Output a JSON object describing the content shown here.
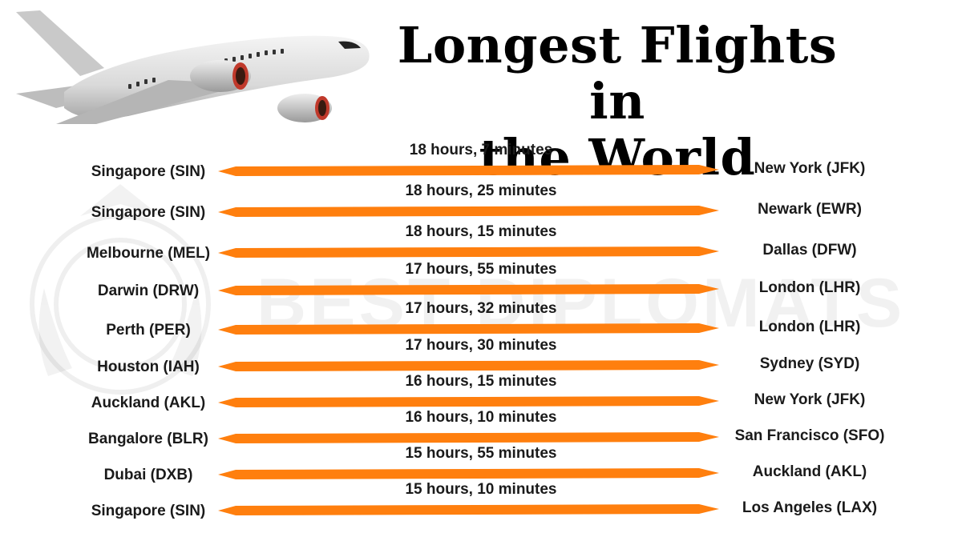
{
  "title_line1": "Longest Flights in",
  "title_line2": "the World",
  "watermark": "BEST DIPLOMATS",
  "arrow_color": "#ff7f0e",
  "flights": [
    {
      "origin": "Singapore (SIN)",
      "destination": "New York (JFK)",
      "duration": "18 hours, 7 minutes"
    },
    {
      "origin": "Singapore (SIN)",
      "destination": "Newark (EWR)",
      "duration": "18 hours, 25 minutes"
    },
    {
      "origin": "Melbourne (MEL)",
      "destination": "Dallas (DFW)",
      "duration": "18 hours, 15 minutes"
    },
    {
      "origin": "Darwin (DRW)",
      "destination": "London (LHR)",
      "duration": "17 hours, 55 minutes"
    },
    {
      "origin": "Perth (PER)",
      "destination": "London (LHR)",
      "duration": "17 hours, 32 minutes"
    },
    {
      "origin": "Houston (IAH)",
      "destination": "Sydney (SYD)",
      "duration": "17 hours, 30 minutes"
    },
    {
      "origin": "Auckland (AKL)",
      "destination": "New York (JFK)",
      "duration": "16 hours, 15 minutes"
    },
    {
      "origin": "Bangalore (BLR)",
      "destination": "San Francisco (SFO)",
      "duration": "16 hours, 10 minutes"
    },
    {
      "origin": "Dubai (DXB)",
      "destination": "Auckland (AKL)",
      "duration": "15 hours, 55 minutes"
    },
    {
      "origin": "Singapore (SIN)",
      "destination": "Los Angeles (LAX)",
      "duration": "15 hours, 10 minutes"
    }
  ]
}
